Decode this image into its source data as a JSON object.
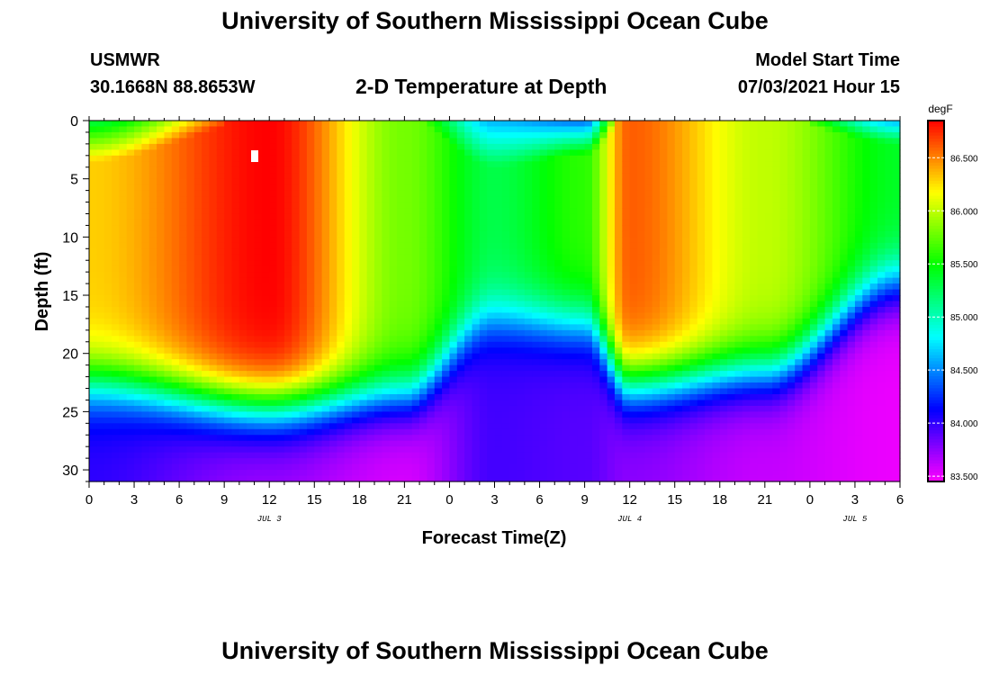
{
  "header": {
    "title_top": "University of Southern Mississippi Ocean Cube",
    "title_bottom": "University of Southern Mississippi Ocean Cube",
    "station_id": "USMWR",
    "station_coords": "30.1668N  88.8653W",
    "plot_title": "2-D Temperature at Depth",
    "model_start_label": "Model Start Time",
    "model_start_value": "07/03/2021 Hour 15"
  },
  "chart_data": {
    "type": "heatmap",
    "title": "2-D Temperature at Depth",
    "xlabel": "Forecast Time(Z)",
    "ylabel": "Depth (ft)",
    "colorbar_label": "degF",
    "x_ticks": [
      "0",
      "3",
      "6",
      "9",
      "12",
      "15",
      "18",
      "21",
      "0",
      "3",
      "6",
      "9",
      "12",
      "15",
      "18",
      "21",
      "0",
      "3",
      "6"
    ],
    "date_labels": [
      {
        "label": "JUL 3",
        "hour_index": 12
      },
      {
        "label": "JUL 4",
        "hour_index": 36
      },
      {
        "label": "JUL 5",
        "hour_index": 51
      }
    ],
    "xlim_hours": [
      0,
      54
    ],
    "y_ticks": [
      "0",
      "5",
      "10",
      "15",
      "20",
      "25",
      "30"
    ],
    "ylim_ft": [
      0,
      31
    ],
    "colorbar_ticks": [
      "83.500",
      "84.000",
      "84.500",
      "85.000",
      "85.500",
      "86.000",
      "86.500"
    ],
    "zlim_degF": [
      83.45,
      86.85
    ],
    "key_hours": [
      0,
      12,
      21,
      27,
      33,
      36,
      45,
      54
    ],
    "thermocline_depth_ft": [
      22.5,
      24.5,
      23.5,
      17,
      17.5,
      22.5,
      21.5,
      14
    ],
    "surface_temp_degF": [
      86.3,
      86.85,
      85.8,
      85.3,
      85.6,
      86.6,
      86.0,
      85.4
    ],
    "surface_cool_depth_ft": [
      3.5,
      0,
      0,
      4,
      3,
      0,
      0,
      2
    ],
    "surface_cool_temp_degF": [
      85.3,
      86.85,
      85.8,
      84.6,
      84.4,
      86.6,
      86.0,
      84.6
    ],
    "bottom_temp_degF": [
      84.0,
      83.7,
      83.55,
      83.95,
      83.9,
      83.75,
      83.6,
      83.5
    ]
  }
}
